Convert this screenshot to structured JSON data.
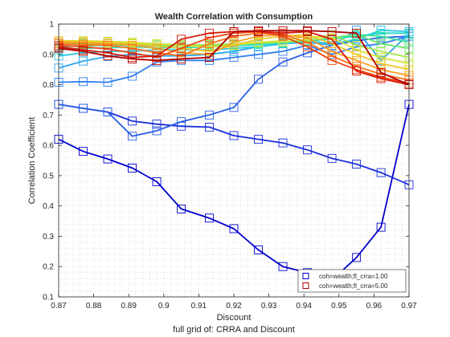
{
  "chart_data": {
    "type": "line",
    "title": "Wealth Correlation with Consumption",
    "xlabel": "Discount",
    "ylabel": "Correlation Coefficient",
    "caption": "full grid of: CRRA and Discount",
    "xlim": [
      0.87,
      0.97
    ],
    "ylim": [
      0.1,
      1.0
    ],
    "x_ticks": [
      "0.87",
      "0.88",
      "0.89",
      "0.9",
      "0.91",
      "0.92",
      "0.93",
      "0.94",
      "0.95",
      "0.96",
      "0.97"
    ],
    "y_ticks": [
      "0.1",
      "0.2",
      "0.3",
      "0.4",
      "0.5",
      "0.6",
      "0.7",
      "0.8",
      "0.9",
      "1"
    ],
    "grid": "minor, dotted",
    "legend_position": "bottom-right",
    "legend": [
      {
        "label": "coh=wealth;fl_crra=1.00",
        "color": "#0000cd"
      },
      {
        "label": "coh=wealth;fl_crra=5.00",
        "color": "#b00000"
      }
    ],
    "x": [
      0.87,
      0.877,
      0.884,
      0.891,
      0.898,
      0.905,
      0.913,
      0.92,
      0.927,
      0.934,
      0.941,
      0.948,
      0.955,
      0.962,
      0.97
    ],
    "series": [
      {
        "values": [
          0.62,
          0.58,
          0.555,
          0.525,
          0.48,
          0.39,
          0.36,
          0.325,
          0.255,
          0.2,
          0.18,
          0.155,
          0.23,
          0.33,
          0.735
        ],
        "color": "#0000cd"
      },
      {
        "values": [
          0.735,
          0.722,
          0.71,
          0.68,
          0.67,
          0.663,
          0.66,
          0.632,
          0.62,
          0.608,
          0.585,
          0.557,
          0.538,
          0.51,
          0.47
        ],
        "color": "#1a2fdc"
      },
      {
        "values": [
          0.735,
          0.722,
          0.71,
          0.63,
          0.648,
          0.678,
          0.7,
          0.725,
          0.818,
          0.875,
          0.905,
          0.93,
          0.945,
          0.955,
          0.96
        ],
        "color": "#2a5ee6"
      },
      {
        "values": [
          0.808,
          0.81,
          0.808,
          0.828,
          0.875,
          0.88,
          0.88,
          0.89,
          0.9,
          0.91,
          0.93,
          0.9,
          0.925,
          0.935,
          0.96
        ],
        "color": "#2f7ff0"
      },
      {
        "values": [
          0.855,
          0.878,
          0.893,
          0.9,
          0.895,
          0.895,
          0.9,
          0.91,
          0.925,
          0.935,
          0.94,
          0.93,
          0.98,
          0.88,
          0.968
        ],
        "color": "#2ea6f2"
      },
      {
        "values": [
          0.895,
          0.905,
          0.91,
          0.91,
          0.915,
          0.915,
          0.915,
          0.92,
          0.925,
          0.935,
          0.945,
          0.935,
          0.95,
          0.98,
          0.975
        ],
        "color": "#28c8e8"
      },
      {
        "values": [
          0.915,
          0.92,
          0.922,
          0.925,
          0.922,
          0.922,
          0.925,
          0.928,
          0.932,
          0.938,
          0.945,
          0.95,
          0.96,
          0.97,
          0.97
        ],
        "color": "#20dcc8"
      },
      {
        "values": [
          0.925,
          0.928,
          0.93,
          0.93,
          0.928,
          0.928,
          0.93,
          0.932,
          0.935,
          0.94,
          0.945,
          0.955,
          0.965,
          0.96,
          0.94
        ],
        "color": "#3ce29a"
      },
      {
        "values": [
          0.935,
          0.935,
          0.936,
          0.935,
          0.932,
          0.93,
          0.932,
          0.935,
          0.938,
          0.94,
          0.945,
          0.955,
          0.965,
          0.935,
          0.92
        ],
        "color": "#6ee66a"
      },
      {
        "values": [
          0.94,
          0.94,
          0.94,
          0.938,
          0.935,
          0.932,
          0.93,
          0.935,
          0.94,
          0.94,
          0.95,
          0.965,
          0.93,
          0.91,
          0.89
        ],
        "color": "#a6e84c"
      },
      {
        "values": [
          0.945,
          0.945,
          0.943,
          0.94,
          0.935,
          0.928,
          0.925,
          0.93,
          0.94,
          0.945,
          0.96,
          0.955,
          0.915,
          0.89,
          0.87
        ],
        "color": "#d6e438"
      },
      {
        "values": [
          0.945,
          0.942,
          0.94,
          0.935,
          0.928,
          0.92,
          0.91,
          0.93,
          0.95,
          0.96,
          0.965,
          0.935,
          0.9,
          0.87,
          0.85
        ],
        "color": "#f0c828"
      },
      {
        "values": [
          0.94,
          0.938,
          0.935,
          0.93,
          0.92,
          0.905,
          0.9,
          0.94,
          0.96,
          0.965,
          0.955,
          0.91,
          0.88,
          0.85,
          0.83
        ],
        "color": "#f8a020"
      },
      {
        "values": [
          0.935,
          0.932,
          0.93,
          0.92,
          0.905,
          0.895,
          0.935,
          0.96,
          0.97,
          0.965,
          0.94,
          0.895,
          0.86,
          0.835,
          0.815
        ],
        "color": "#f87418"
      },
      {
        "values": [
          0.93,
          0.925,
          0.918,
          0.905,
          0.89,
          0.92,
          0.955,
          0.97,
          0.975,
          0.96,
          0.925,
          0.88,
          0.85,
          0.825,
          0.805
        ],
        "color": "#f04410"
      },
      {
        "values": [
          0.925,
          0.915,
          0.905,
          0.89,
          0.895,
          0.95,
          0.97,
          0.975,
          0.975,
          0.97,
          0.975,
          0.95,
          0.845,
          0.82,
          0.8
        ],
        "color": "#d81a0a"
      },
      {
        "values": [
          0.92,
          0.91,
          0.895,
          0.885,
          0.88,
          0.885,
          0.89,
          0.975,
          0.978,
          0.978,
          0.978,
          0.975,
          0.97,
          0.84,
          0.8
        ],
        "color": "#b00000"
      }
    ]
  }
}
